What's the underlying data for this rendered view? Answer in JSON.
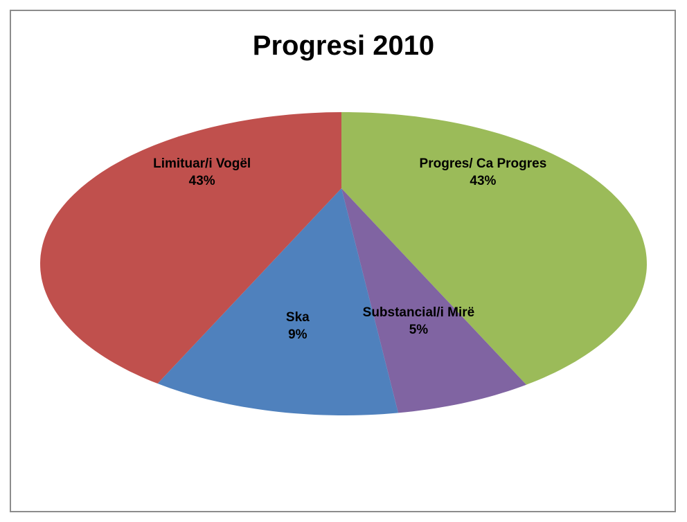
{
  "chart_data": {
    "type": "pie",
    "title": "Progresi 2010",
    "categories": [
      "Progres/ Ca Progres",
      "Substancial/i Mirë",
      "Ska",
      "Limituar/i Vogël"
    ],
    "values": [
      43,
      5,
      9,
      43
    ],
    "value_labels": [
      "43%",
      "5%",
      "9%",
      "43%"
    ],
    "colors": [
      "#9bbb59",
      "#8064a2",
      "#4f81bd",
      "#c0504d"
    ]
  }
}
